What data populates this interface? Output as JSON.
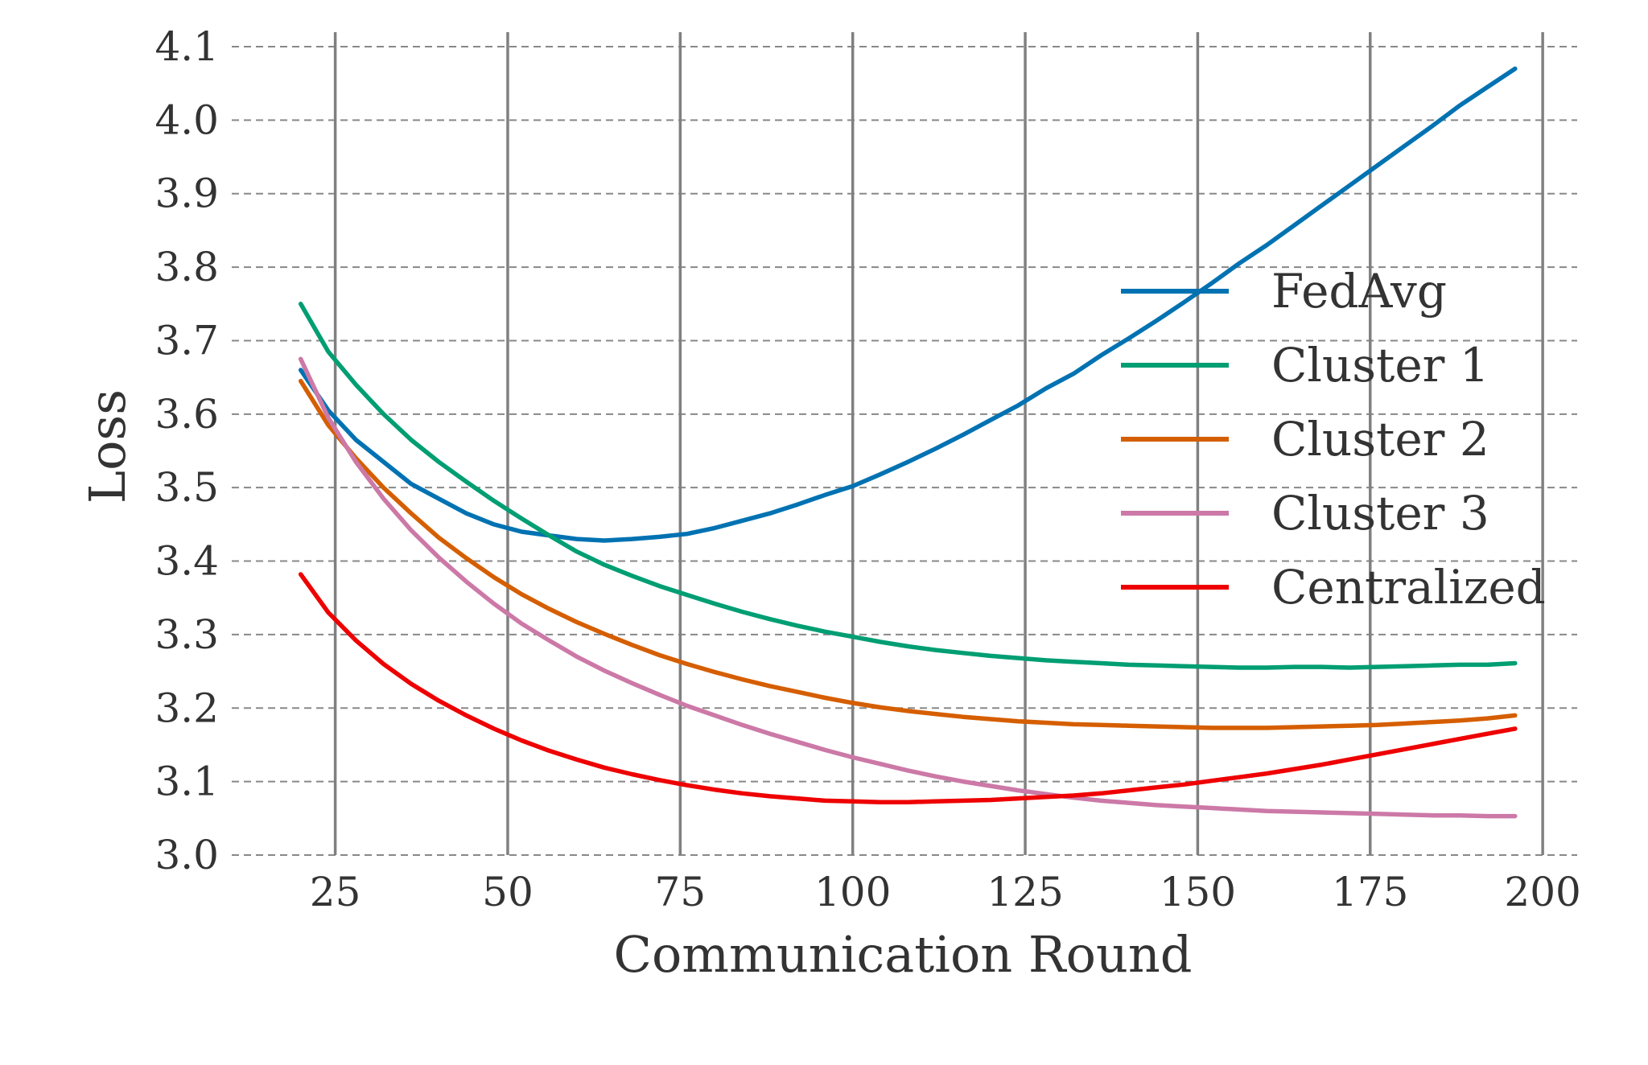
{
  "chart_data": {
    "type": "line",
    "title": "",
    "xlabel": "Communication Round",
    "ylabel": "Loss",
    "xlim": [
      10,
      205
    ],
    "ylim": [
      3.0,
      4.1
    ],
    "xticks": [
      25,
      50,
      75,
      100,
      125,
      150,
      175,
      200
    ],
    "yticks": [
      3.0,
      3.1,
      3.2,
      3.3,
      3.4,
      3.5,
      3.6,
      3.7,
      3.8,
      3.9,
      4.0,
      4.1
    ],
    "grid": true,
    "legend_position": "center-right",
    "x": [
      20,
      24,
      28,
      32,
      36,
      40,
      44,
      48,
      52,
      56,
      60,
      64,
      68,
      72,
      76,
      80,
      84,
      88,
      92,
      96,
      100,
      104,
      108,
      112,
      116,
      120,
      124,
      128,
      132,
      136,
      140,
      144,
      148,
      152,
      156,
      160,
      164,
      168,
      172,
      176,
      180,
      184,
      188,
      192,
      196
    ],
    "series": [
      {
        "name": "FedAvg",
        "color": "#0072B2",
        "values": [
          3.66,
          3.605,
          3.565,
          3.535,
          3.505,
          3.485,
          3.465,
          3.45,
          3.44,
          3.435,
          3.43,
          3.428,
          3.43,
          3.433,
          3.437,
          3.445,
          3.455,
          3.465,
          3.477,
          3.49,
          3.502,
          3.518,
          3.535,
          3.553,
          3.572,
          3.592,
          3.612,
          3.635,
          3.655,
          3.68,
          3.703,
          3.727,
          3.752,
          3.778,
          3.805,
          3.83,
          3.857,
          3.884,
          3.911,
          3.938,
          3.965,
          3.992,
          4.02,
          4.045,
          4.07
        ]
      },
      {
        "name": "Cluster 1",
        "color": "#009E73",
        "values": [
          3.75,
          3.685,
          3.64,
          3.6,
          3.565,
          3.535,
          3.508,
          3.482,
          3.458,
          3.435,
          3.413,
          3.395,
          3.38,
          3.366,
          3.354,
          3.342,
          3.331,
          3.321,
          3.312,
          3.304,
          3.297,
          3.29,
          3.284,
          3.279,
          3.275,
          3.271,
          3.268,
          3.265,
          3.263,
          3.261,
          3.259,
          3.258,
          3.257,
          3.256,
          3.255,
          3.255,
          3.256,
          3.256,
          3.255,
          3.256,
          3.257,
          3.258,
          3.259,
          3.259,
          3.261
        ]
      },
      {
        "name": "Cluster 2",
        "color": "#D55E00",
        "values": [
          3.645,
          3.585,
          3.54,
          3.5,
          3.465,
          3.432,
          3.404,
          3.378,
          3.355,
          3.335,
          3.317,
          3.301,
          3.286,
          3.272,
          3.26,
          3.249,
          3.239,
          3.23,
          3.222,
          3.214,
          3.207,
          3.201,
          3.196,
          3.192,
          3.188,
          3.185,
          3.182,
          3.18,
          3.178,
          3.177,
          3.176,
          3.175,
          3.174,
          3.173,
          3.173,
          3.173,
          3.174,
          3.175,
          3.176,
          3.177,
          3.179,
          3.181,
          3.183,
          3.186,
          3.19
        ]
      },
      {
        "name": "Cluster 3",
        "color": "#CC79A7",
        "values": [
          3.675,
          3.595,
          3.535,
          3.485,
          3.442,
          3.405,
          3.372,
          3.342,
          3.315,
          3.292,
          3.27,
          3.251,
          3.234,
          3.218,
          3.203,
          3.19,
          3.177,
          3.165,
          3.154,
          3.143,
          3.133,
          3.124,
          3.115,
          3.107,
          3.1,
          3.094,
          3.088,
          3.083,
          3.078,
          3.074,
          3.071,
          3.068,
          3.066,
          3.064,
          3.062,
          3.06,
          3.059,
          3.058,
          3.057,
          3.056,
          3.055,
          3.054,
          3.054,
          3.053,
          3.053
        ]
      },
      {
        "name": "Centralized",
        "color": "#EE0000",
        "values": [
          3.382,
          3.33,
          3.292,
          3.26,
          3.233,
          3.21,
          3.19,
          3.172,
          3.156,
          3.142,
          3.13,
          3.119,
          3.11,
          3.102,
          3.095,
          3.089,
          3.084,
          3.08,
          3.077,
          3.074,
          3.073,
          3.072,
          3.072,
          3.073,
          3.074,
          3.075,
          3.077,
          3.079,
          3.081,
          3.084,
          3.088,
          3.092,
          3.096,
          3.101,
          3.106,
          3.111,
          3.117,
          3.123,
          3.13,
          3.137,
          3.144,
          3.151,
          3.158,
          3.165,
          3.172
        ]
      }
    ]
  }
}
